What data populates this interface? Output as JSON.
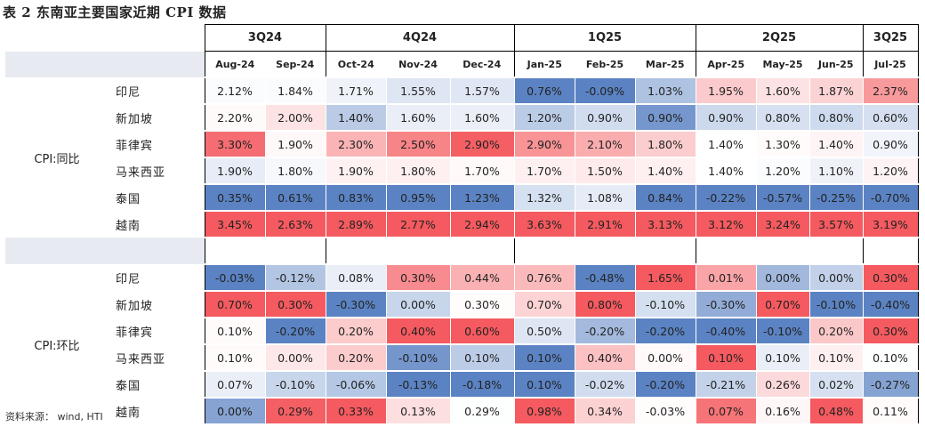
{
  "title": "表 2  东南亚主要国家近期 CPI 数据",
  "source": "资料来源：   wind, HTI",
  "colors": {
    "max_red": "#f45a5f",
    "max_blue": "#5b83c3",
    "neutral": "#ffffff",
    "header_shade": "#e7ebf1"
  },
  "quarters": [
    {
      "label": "3Q24",
      "span": 2
    },
    {
      "label": "4Q24",
      "span": 3
    },
    {
      "label": "1Q25",
      "span": 3
    },
    {
      "label": "2Q25",
      "span": 3
    },
    {
      "label": "3Q25",
      "span": 1
    }
  ],
  "months": [
    "Aug-24",
    "Sep-24",
    "Oct-24",
    "Nov-24",
    "Dec-24",
    "Jan-25",
    "Feb-25",
    "Mar-25",
    "Apr-25",
    "May-25",
    "Jun-25",
    "Jul-25"
  ],
  "groups": [
    {
      "label": "CPI:同比",
      "rows": [
        {
          "country": "印尼",
          "values": [
            "2.12%",
            "1.84%",
            "1.71%",
            "1.55%",
            "1.57%",
            "0.76%",
            "-0.09%",
            "1.03%",
            "1.95%",
            "1.60%",
            "1.87%",
            "2.37%"
          ]
        },
        {
          "country": "新加坡",
          "values": [
            "2.20%",
            "2.00%",
            "1.40%",
            "1.60%",
            "1.60%",
            "1.20%",
            "0.90%",
            "0.90%",
            "0.90%",
            "0.80%",
            "0.80%",
            "0.60%"
          ]
        },
        {
          "country": "菲律宾",
          "values": [
            "3.30%",
            "1.90%",
            "2.30%",
            "2.50%",
            "2.90%",
            "2.90%",
            "2.10%",
            "1.80%",
            "1.40%",
            "1.30%",
            "1.40%",
            "0.90%"
          ]
        },
        {
          "country": "马来西亚",
          "values": [
            "1.90%",
            "1.80%",
            "1.90%",
            "1.80%",
            "1.70%",
            "1.70%",
            "1.50%",
            "1.40%",
            "1.40%",
            "1.20%",
            "1.10%",
            "1.20%"
          ]
        },
        {
          "country": "泰国",
          "values": [
            "0.35%",
            "0.61%",
            "0.83%",
            "0.95%",
            "1.23%",
            "1.32%",
            "1.08%",
            "0.84%",
            "-0.22%",
            "-0.57%",
            "-0.25%",
            "-0.70%"
          ]
        },
        {
          "country": "越南",
          "values": [
            "3.45%",
            "2.63%",
            "2.89%",
            "2.77%",
            "2.94%",
            "3.63%",
            "2.91%",
            "3.13%",
            "3.12%",
            "3.24%",
            "3.57%",
            "3.19%"
          ]
        }
      ]
    },
    {
      "label": "CPI:环比",
      "rows": [
        {
          "country": "印尼",
          "values": [
            "-0.03%",
            "-0.12%",
            "0.08%",
            "0.30%",
            "0.44%",
            "0.76%",
            "-0.48%",
            "1.65%",
            "0.01%",
            "0.00%",
            "0.00%",
            "0.30%"
          ]
        },
        {
          "country": "新加坡",
          "values": [
            "0.70%",
            "0.30%",
            "-0.30%",
            "0.00%",
            "0.30%",
            "0.70%",
            "0.80%",
            "-0.10%",
            "-0.30%",
            "0.70%",
            "-0.10%",
            "-0.40%"
          ]
        },
        {
          "country": "菲律宾",
          "values": [
            "0.10%",
            "-0.20%",
            "0.20%",
            "0.40%",
            "0.60%",
            "0.50%",
            "-0.20%",
            "-0.20%",
            "-0.40%",
            "-0.10%",
            "0.20%",
            "0.30%"
          ]
        },
        {
          "country": "马来西亚",
          "values": [
            "0.10%",
            "0.00%",
            "0.20%",
            "-0.10%",
            "0.10%",
            "0.10%",
            "0.40%",
            "0.00%",
            "0.10%",
            "0.10%",
            "0.10%",
            "0.10%"
          ]
        },
        {
          "country": "泰国",
          "values": [
            "0.07%",
            "-0.10%",
            "-0.06%",
            "-0.13%",
            "-0.18%",
            "0.10%",
            "-0.02%",
            "-0.20%",
            "-0.21%",
            "0.26%",
            "0.02%",
            "-0.27%"
          ]
        },
        {
          "country": "越南",
          "values": [
            "0.00%",
            "0.29%",
            "0.33%",
            "0.13%",
            "0.29%",
            "0.98%",
            "0.34%",
            "-0.03%",
            "0.07%",
            "0.16%",
            "0.48%",
            "0.11%"
          ]
        }
      ]
    }
  ]
}
